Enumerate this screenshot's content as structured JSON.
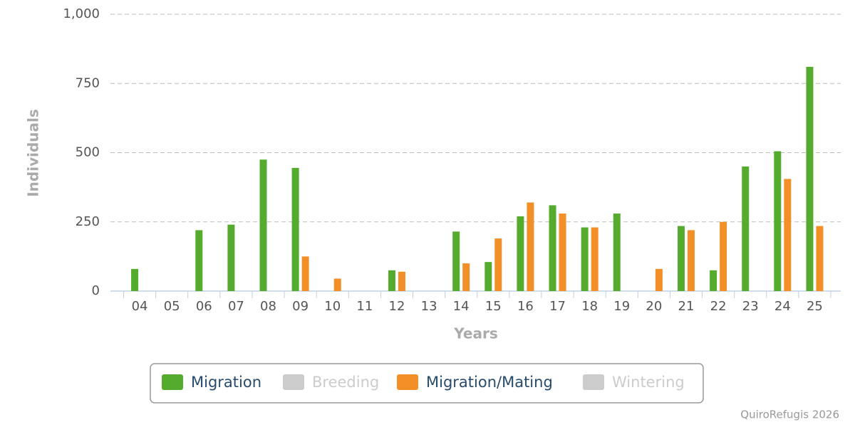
{
  "chart_data": {
    "type": "bar",
    "x_label": "Years",
    "y_label": "Individuals",
    "credits": "QuiroRefugis 2026",
    "categories": [
      "04",
      "05",
      "06",
      "07",
      "08",
      "09",
      "10",
      "11",
      "12",
      "13",
      "14",
      "15",
      "16",
      "17",
      "18",
      "19",
      "20",
      "21",
      "22",
      "23",
      "24",
      "25"
    ],
    "series": [
      {
        "name": "Migration",
        "color": "#55ab2e",
        "visible": true,
        "values": [
          80,
          null,
          220,
          240,
          475,
          445,
          null,
          null,
          75,
          null,
          215,
          105,
          270,
          310,
          230,
          280,
          null,
          235,
          75,
          450,
          505,
          810
        ]
      },
      {
        "name": "Breeding",
        "color": "#cccccc",
        "visible": false,
        "values": [
          null,
          null,
          null,
          null,
          null,
          null,
          null,
          null,
          null,
          null,
          null,
          null,
          null,
          null,
          null,
          null,
          null,
          null,
          null,
          null,
          null,
          null
        ]
      },
      {
        "name": "Migration/Mating",
        "color": "#f28f27",
        "visible": true,
        "values": [
          null,
          null,
          null,
          null,
          null,
          125,
          45,
          null,
          70,
          null,
          100,
          190,
          320,
          280,
          230,
          null,
          80,
          220,
          250,
          null,
          405,
          235
        ]
      },
      {
        "name": "Wintering",
        "color": "#cccccc",
        "visible": false,
        "values": [
          null,
          null,
          null,
          null,
          null,
          null,
          null,
          null,
          null,
          null,
          null,
          null,
          null,
          null,
          null,
          null,
          null,
          null,
          null,
          null,
          null,
          null
        ]
      }
    ],
    "ylim": [
      0,
      1000
    ],
    "yticks": [
      0,
      250,
      500,
      750,
      {
        "value": 1000,
        "label": "1,000"
      }
    ],
    "grid": true,
    "legend": "bottom"
  }
}
